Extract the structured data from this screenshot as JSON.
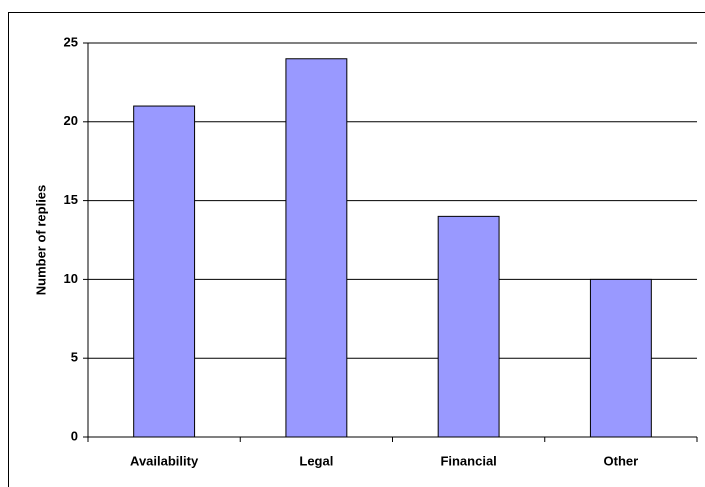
{
  "chart_data": {
    "type": "bar",
    "y_label": "Number of replies",
    "categories": [
      "Availability",
      "Legal",
      "Financial",
      "Other"
    ],
    "values": [
      21,
      24,
      14,
      10
    ],
    "color": "#9999ff",
    "ylim": [
      0,
      25
    ],
    "yticks": [
      0,
      5,
      10,
      15,
      20,
      25
    ],
    "grid": true
  }
}
